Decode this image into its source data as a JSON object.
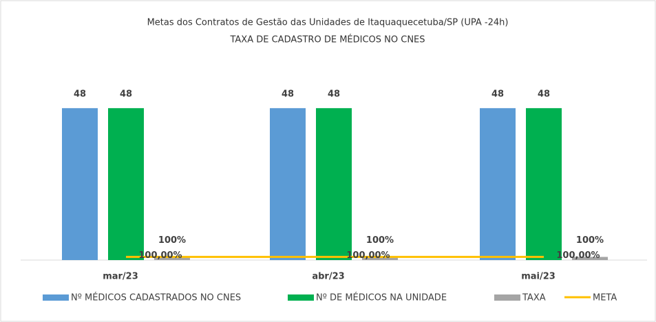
{
  "chart_data": {
    "type": "bar",
    "title": "Metas dos Contratos de Gestão das Unidades de Itaquaquecetuba/SP (UPA -24h)",
    "subtitle": "TAXA DE CADASTRO DE MÉDICOS NO CNES",
    "categories": [
      "mar/23",
      "abr/23",
      "mai/23"
    ],
    "series": [
      {
        "name": "Nº MÉDICOS CADASTRADOS NO CNES",
        "color": "#5b9bd5",
        "values": [
          48,
          48,
          48
        ]
      },
      {
        "name": "Nº DE MÉDICOS NA UNIDADE",
        "color": "#00b050",
        "values": [
          48,
          48,
          48
        ]
      },
      {
        "name": "TAXA",
        "color": "#a5a5a5",
        "values": [
          1,
          1,
          1
        ],
        "value_labels": [
          "100%",
          "100%",
          "100%"
        ]
      },
      {
        "name": "META",
        "type": "line",
        "color": "#ffc000",
        "values": [
          1,
          1,
          1
        ],
        "value_labels": [
          "100,00%",
          "100,00%",
          "100,00%"
        ]
      }
    ],
    "ylim": [
      0,
      60
    ]
  }
}
